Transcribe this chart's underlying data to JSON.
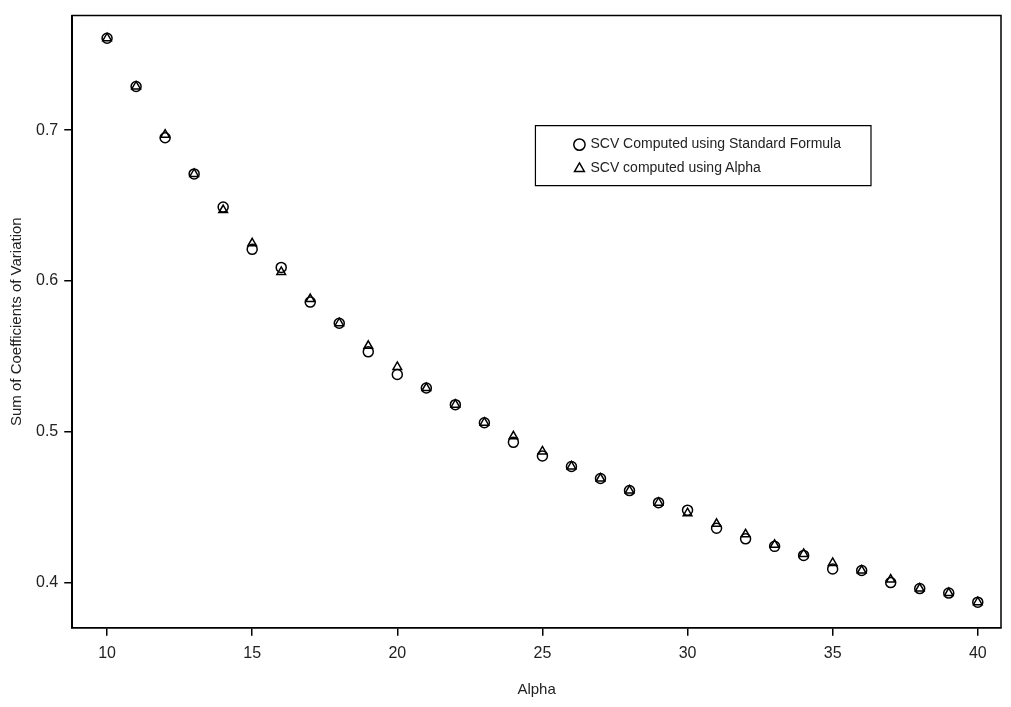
{
  "chart_data": {
    "type": "scatter",
    "xlabel": "Alpha",
    "ylabel": "Sum of Coefficients of Variation",
    "x": [
      10,
      11,
      12,
      13,
      14,
      15,
      16,
      17,
      18,
      19,
      20,
      21,
      22,
      23,
      24,
      25,
      26,
      27,
      28,
      29,
      30,
      31,
      32,
      33,
      34,
      35,
      36,
      37,
      38,
      39,
      40
    ],
    "series": [
      {
        "name": "SCV Computed using Standard Formula",
        "color": "#000000",
        "marker": "circle",
        "values": [
          0.761,
          0.729,
          0.695,
          0.671,
          0.649,
          0.621,
          0.609,
          0.586,
          0.572,
          0.553,
          0.538,
          0.529,
          0.518,
          0.506,
          0.493,
          0.484,
          0.477,
          0.469,
          0.461,
          0.453,
          0.448,
          0.436,
          0.429,
          0.424,
          0.418,
          0.409,
          0.408,
          0.4,
          0.396,
          0.393,
          0.387
        ]
      },
      {
        "name": "SCV computed using Alpha",
        "color": "#000000",
        "marker": "triangle",
        "values": [
          0.761,
          0.729,
          0.697,
          0.671,
          0.647,
          0.625,
          0.606,
          0.588,
          0.572,
          0.557,
          0.543,
          0.529,
          0.518,
          0.506,
          0.497,
          0.487,
          0.477,
          0.469,
          0.461,
          0.453,
          0.446,
          0.439,
          0.432,
          0.425,
          0.419,
          0.413,
          0.408,
          0.402,
          0.396,
          0.393,
          0.387
        ]
      }
    ],
    "xlim": [
      8.8,
      40.8
    ],
    "xticks": [
      10,
      15,
      20,
      25,
      30,
      35,
      40
    ],
    "ylim": [
      0.37,
      0.776
    ],
    "yticks": [
      0.4,
      0.5,
      0.6,
      0.7
    ],
    "grid": false,
    "legend": "top right"
  }
}
